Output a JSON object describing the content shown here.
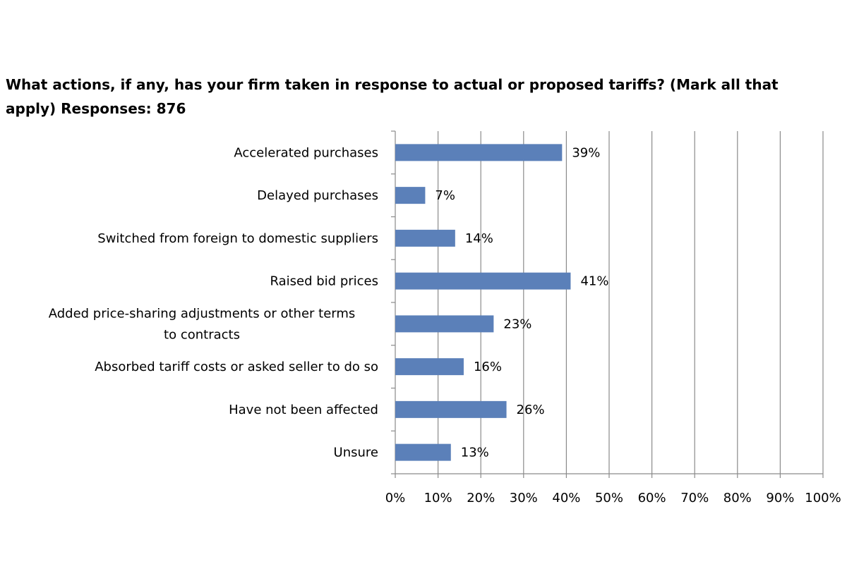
{
  "chart_data": {
    "type": "bar",
    "orientation": "horizontal",
    "title": "What actions, if any, has your firm taken in response to actual or proposed tariffs? (Mark all that apply) Responses: 876",
    "xlabel": "",
    "ylabel": "",
    "categories": [
      "Accelerated purchases",
      "Delayed purchases",
      "Switched from foreign to domestic suppliers",
      "Raised bid prices",
      "Added price-sharing adjustments or other terms to contracts",
      "Absorbed tariff costs or asked seller to do so",
      "Have not been affected",
      "Unsure"
    ],
    "values": [
      39,
      7,
      14,
      41,
      23,
      16,
      26,
      13
    ],
    "data_labels": [
      "39%",
      "7%",
      "14%",
      "41%",
      "23%",
      "16%",
      "26%",
      "13%"
    ],
    "xlim": [
      0,
      100
    ],
    "x_ticks": [
      "0%",
      "10%",
      "20%",
      "30%",
      "40%",
      "50%",
      "60%",
      "70%",
      "80%",
      "90%",
      "100%"
    ],
    "grid": "vertical",
    "legend": "none",
    "bar_color": "#5b80b9",
    "grid_color": "#8a8a8a"
  }
}
